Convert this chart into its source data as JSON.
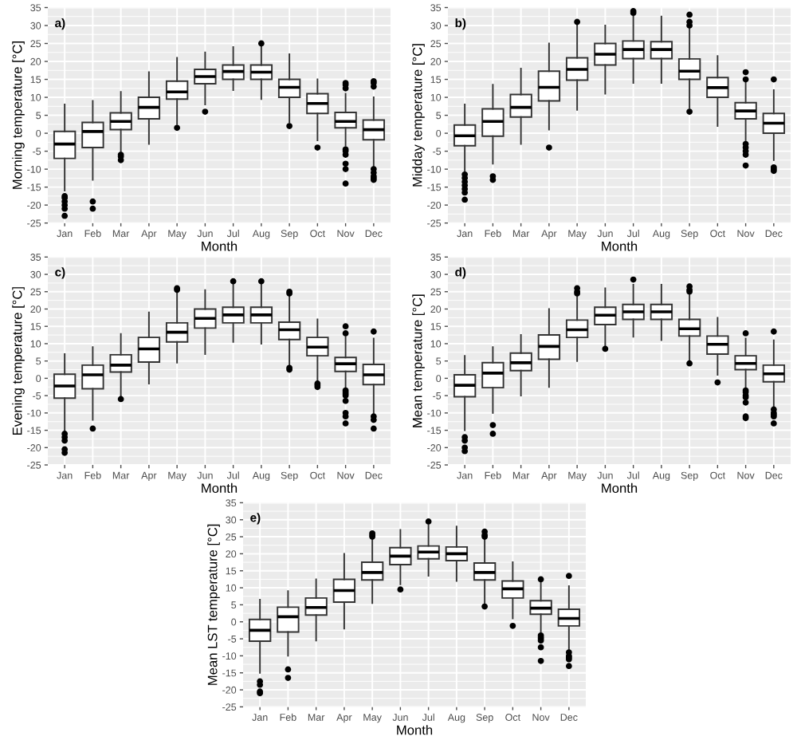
{
  "chart_data": [
    {
      "type": "box",
      "annotations": [
        "a)"
      ],
      "xlabel": "Month",
      "ylabel": "Morning temperature [°C]",
      "categories": [
        "Jan",
        "Feb",
        "Mar",
        "Apr",
        "May",
        "Jun",
        "Jul",
        "Aug",
        "Sep",
        "Oct",
        "Nov",
        "Dec"
      ],
      "ylim": [
        -25,
        35
      ],
      "yticks": [
        -25,
        -20,
        -15,
        -10,
        -5,
        0,
        5,
        10,
        15,
        20,
        25,
        30,
        35
      ],
      "grid": true,
      "color": "#ffffff",
      "boxes": [
        {
          "low": -16,
          "q1": -7,
          "median": -3,
          "q3": 0.5,
          "high": 8,
          "outliers": [
            -17.5,
            -18,
            -19,
            -20,
            -21,
            -23
          ]
        },
        {
          "low": -13,
          "q1": -4,
          "median": 0.5,
          "q3": 3,
          "high": 9,
          "outliers": [
            -19,
            -21
          ]
        },
        {
          "low": -5.5,
          "q1": 1,
          "median": 3.3,
          "q3": 5.7,
          "high": 11.5,
          "outliers": [
            -6,
            -6.5,
            -7.5
          ]
        },
        {
          "low": -3,
          "q1": 4,
          "median": 7.2,
          "q3": 10,
          "high": 17
        },
        {
          "low": 2.5,
          "q1": 9.5,
          "median": 11.5,
          "q3": 14.5,
          "high": 21,
          "outliers": [
            1.5
          ]
        },
        {
          "low": 8,
          "q1": 13.8,
          "median": 15.8,
          "q3": 17.8,
          "high": 22.5,
          "outliers": [
            6
          ]
        },
        {
          "low": 12,
          "q1": 15,
          "median": 17.2,
          "q3": 19,
          "high": 24
        },
        {
          "low": 9.5,
          "q1": 15,
          "median": 17,
          "q3": 19,
          "high": 24,
          "outliers": [
            25
          ]
        },
        {
          "low": 3,
          "q1": 10,
          "median": 12.8,
          "q3": 15,
          "high": 22,
          "outliers": [
            2
          ]
        },
        {
          "low": -2,
          "q1": 5.5,
          "median": 8.3,
          "q3": 11,
          "high": 15,
          "outliers": [
            -4
          ]
        },
        {
          "low": -3.5,
          "q1": 1.5,
          "median": 3.3,
          "q3": 5.8,
          "high": 11,
          "outliers": [
            -4.5,
            -5,
            -6,
            -8.5,
            -10,
            -14,
            12.5,
            13.5,
            14
          ]
        },
        {
          "low": -9.5,
          "q1": -1.8,
          "median": 1,
          "q3": 3.7,
          "high": 10,
          "outliers": [
            -10,
            -11,
            -12,
            -12.5,
            -13,
            13,
            14,
            14.5
          ]
        }
      ]
    },
    {
      "type": "box",
      "annotations": [
        "b)"
      ],
      "xlabel": "Month",
      "ylabel": "Midday temperature [°C]",
      "categories": [
        "Jan",
        "Feb",
        "Mar",
        "Apr",
        "May",
        "Jun",
        "Jul",
        "Aug",
        "Sep",
        "Oct",
        "Nov",
        "Dec"
      ],
      "ylim": [
        -25,
        35
      ],
      "yticks": [
        -25,
        -20,
        -15,
        -10,
        -5,
        0,
        5,
        10,
        15,
        20,
        25,
        30,
        35
      ],
      "grid": true,
      "color": "#ffffff",
      "boxes": [
        {
          "low": -11,
          "q1": -3.5,
          "median": -0.7,
          "q3": 2.3,
          "high": 8,
          "outliers": [
            -11.5,
            -12.5,
            -13.5,
            -14.5,
            -15.5,
            -16.5,
            -18.5
          ]
        },
        {
          "low": -8.5,
          "q1": -0.8,
          "median": 3.3,
          "q3": 6.8,
          "high": 13.5,
          "outliers": [
            -12,
            -13
          ]
        },
        {
          "low": -3,
          "q1": 4.5,
          "median": 7.2,
          "q3": 10.8,
          "high": 18
        },
        {
          "low": 1,
          "q1": 9,
          "median": 12.8,
          "q3": 17.3,
          "high": 25,
          "outliers": [
            -4
          ]
        },
        {
          "low": 6.5,
          "q1": 14.8,
          "median": 17.8,
          "q3": 21,
          "high": 30,
          "outliers": [
            31
          ]
        },
        {
          "low": 11,
          "q1": 19,
          "median": 22,
          "q3": 25,
          "high": 30
        },
        {
          "low": 14,
          "q1": 20.8,
          "median": 23.3,
          "q3": 25.7,
          "high": 32.5,
          "outliers": [
            33.5,
            34
          ]
        },
        {
          "low": 14,
          "q1": 20.8,
          "median": 23.3,
          "q3": 25.5,
          "high": 32.5
        },
        {
          "low": 7,
          "q1": 15,
          "median": 17.3,
          "q3": 20.7,
          "high": 29,
          "outliers": [
            6,
            30,
            31,
            33
          ]
        },
        {
          "low": 2,
          "q1": 10,
          "median": 12.7,
          "q3": 15.5,
          "high": 21.5
        },
        {
          "low": -2.5,
          "q1": 4,
          "median": 6.2,
          "q3": 8.5,
          "high": 14.5,
          "outliers": [
            -3,
            -4,
            -5,
            -6,
            -9,
            15,
            17
          ]
        },
        {
          "low": -7.5,
          "q1": 0,
          "median": 2.8,
          "q3": 5.5,
          "high": 12,
          "outliers": [
            -9.5,
            -10,
            -10.5,
            15
          ]
        }
      ]
    },
    {
      "type": "box",
      "annotations": [
        "c)"
      ],
      "xlabel": "Month",
      "ylabel": "Evening temperature [°C]",
      "categories": [
        "Jan",
        "Feb",
        "Mar",
        "Apr",
        "May",
        "Jun",
        "Jul",
        "Aug",
        "Sep",
        "Oct",
        "Nov",
        "Dec"
      ],
      "ylim": [
        -25,
        35
      ],
      "yticks": [
        -25,
        -20,
        -15,
        -10,
        -5,
        0,
        5,
        10,
        15,
        20,
        25,
        30,
        35
      ],
      "grid": true,
      "color": "#ffffff",
      "boxes": [
        {
          "low": -15,
          "q1": -5.7,
          "median": -2.2,
          "q3": 1.2,
          "high": 7,
          "outliers": [
            -16,
            -17,
            -18,
            -20.5,
            -21.5
          ]
        },
        {
          "low": -12,
          "q1": -3,
          "median": 1,
          "q3": 3.8,
          "high": 9,
          "outliers": [
            -14.5
          ]
        },
        {
          "low": -5,
          "q1": 1.8,
          "median": 3.8,
          "q3": 6.8,
          "high": 12.8,
          "outliers": [
            -6
          ]
        },
        {
          "low": -1.5,
          "q1": 4.7,
          "median": 8.5,
          "q3": 11.8,
          "high": 19
        },
        {
          "low": 4.5,
          "q1": 10.5,
          "median": 13.3,
          "q3": 16,
          "high": 25,
          "outliers": [
            25.5,
            26
          ]
        },
        {
          "low": 7,
          "q1": 14.5,
          "median": 17.3,
          "q3": 20,
          "high": 25.5
        },
        {
          "low": 10.5,
          "q1": 16,
          "median": 18.3,
          "q3": 20.5,
          "high": 27,
          "outliers": [
            28
          ]
        },
        {
          "low": 10,
          "q1": 16,
          "median": 18.3,
          "q3": 20.5,
          "high": 27,
          "outliers": [
            28
          ]
        },
        {
          "low": 4,
          "q1": 11.2,
          "median": 14,
          "q3": 16.2,
          "high": 24,
          "outliers": [
            2.5,
            3,
            24.5,
            25
          ]
        },
        {
          "low": -1,
          "q1": 6.5,
          "median": 9,
          "q3": 11.8,
          "high": 17,
          "outliers": [
            -1.5,
            -2,
            -2.5
          ]
        },
        {
          "low": -3,
          "q1": 2,
          "median": 4.2,
          "q3": 6,
          "high": 12,
          "outliers": [
            -3.5,
            -4,
            -4.5,
            -5,
            -6.5,
            -10,
            -11,
            -13,
            13,
            15
          ]
        },
        {
          "low": -10,
          "q1": -1.8,
          "median": 1,
          "q3": 4,
          "high": 11.5,
          "outliers": [
            -11,
            -12,
            -14.5,
            13.5
          ]
        }
      ]
    },
    {
      "type": "box",
      "annotations": [
        "d)"
      ],
      "xlabel": "Month",
      "ylabel": "Mean temperature [°C]",
      "categories": [
        "Jan",
        "Feb",
        "Mar",
        "Apr",
        "May",
        "Jun",
        "Jul",
        "Aug",
        "Sep",
        "Oct",
        "Nov",
        "Dec"
      ],
      "ylim": [
        -25,
        35
      ],
      "yticks": [
        -25,
        -20,
        -15,
        -10,
        -5,
        0,
        5,
        10,
        15,
        20,
        25,
        30,
        35
      ],
      "grid": true,
      "color": "#ffffff",
      "boxes": [
        {
          "low": -15,
          "q1": -5.3,
          "median": -2,
          "q3": 1,
          "high": 6.5,
          "outliers": [
            -17,
            -18,
            -20,
            -21
          ]
        },
        {
          "low": -10,
          "q1": -2.7,
          "median": 1.5,
          "q3": 4.5,
          "high": 9,
          "outliers": [
            -13.5,
            -16
          ]
        },
        {
          "low": -5,
          "q1": 2.2,
          "median": 4.5,
          "q3": 7.3,
          "high": 12.5
        },
        {
          "low": -2.5,
          "q1": 5.5,
          "median": 9.2,
          "q3": 12.5,
          "high": 20
        },
        {
          "low": 5,
          "q1": 11.8,
          "median": 14,
          "q3": 16.8,
          "high": 24,
          "outliers": [
            24.5,
            25,
            26
          ]
        },
        {
          "low": 9.5,
          "q1": 15.5,
          "median": 18.2,
          "q3": 20.5,
          "high": 26,
          "outliers": [
            8.5
          ]
        },
        {
          "low": 12,
          "q1": 17,
          "median": 19.2,
          "q3": 21.3,
          "high": 27,
          "outliers": [
            28.5
          ]
        },
        {
          "low": 11,
          "q1": 17,
          "median": 19.2,
          "q3": 21.3,
          "high": 27
        },
        {
          "low": 5,
          "q1": 12.2,
          "median": 14.3,
          "q3": 17,
          "high": 24,
          "outliers": [
            4.3,
            25,
            25.5,
            26.5
          ]
        },
        {
          "low": 1,
          "q1": 7,
          "median": 9.8,
          "q3": 12.2,
          "high": 17.5,
          "outliers": [
            -1.2
          ]
        },
        {
          "low": -3,
          "q1": 2.5,
          "median": 4.3,
          "q3": 6.5,
          "high": 11.5,
          "outliers": [
            -3.5,
            -4,
            -5,
            -5.5,
            -7,
            -11,
            -11.5,
            13
          ]
        },
        {
          "low": -8.5,
          "q1": -1,
          "median": 1.3,
          "q3": 3.8,
          "high": 11,
          "outliers": [
            -9,
            -10,
            -10.5,
            -11,
            -13,
            13.5
          ]
        }
      ]
    },
    {
      "type": "box",
      "annotations": [
        "e)"
      ],
      "xlabel": "Month",
      "ylabel": "Mean LST temperature [°C]",
      "categories": [
        "Jan",
        "Feb",
        "Mar",
        "Apr",
        "May",
        "Jun",
        "Jul",
        "Aug",
        "Sep",
        "Oct",
        "Nov",
        "Dec"
      ],
      "ylim": [
        -25,
        35
      ],
      "yticks": [
        -25,
        -20,
        -15,
        -10,
        -5,
        0,
        5,
        10,
        15,
        20,
        25,
        30,
        35
      ],
      "grid": true,
      "color": "#ffffff",
      "boxes": [
        {
          "low": -15,
          "q1": -5.7,
          "median": -2.5,
          "q3": 0.7,
          "high": 6.5,
          "outliers": [
            -17.5,
            -18.5,
            -20.5,
            -21
          ]
        },
        {
          "low": -10,
          "q1": -3,
          "median": 1.5,
          "q3": 4.3,
          "high": 9,
          "outliers": [
            -14,
            -16.5
          ]
        },
        {
          "low": -5.5,
          "q1": 2,
          "median": 4.2,
          "q3": 7,
          "high": 12.5
        },
        {
          "low": -2,
          "q1": 5.8,
          "median": 9.2,
          "q3": 12.5,
          "high": 20
        },
        {
          "low": 5.5,
          "q1": 12.3,
          "median": 14.5,
          "q3": 17.5,
          "high": 24,
          "outliers": [
            25,
            25.5,
            26
          ]
        },
        {
          "low": 11,
          "q1": 16.8,
          "median": 19.3,
          "q3": 21.8,
          "high": 27,
          "outliers": [
            9.5
          ]
        },
        {
          "low": 13.5,
          "q1": 18.5,
          "median": 20.5,
          "q3": 22.3,
          "high": 28.5,
          "outliers": [
            29.5
          ]
        },
        {
          "low": 12,
          "q1": 18,
          "median": 20,
          "q3": 22,
          "high": 28
        },
        {
          "low": 5.5,
          "q1": 12.3,
          "median": 14.5,
          "q3": 17.3,
          "high": 24,
          "outliers": [
            4.5,
            25,
            25.5,
            26.5
          ]
        },
        {
          "low": 1,
          "q1": 7,
          "median": 9.7,
          "q3": 12,
          "high": 17.5,
          "outliers": [
            -1.2
          ]
        },
        {
          "low": -3,
          "q1": 2.2,
          "median": 4,
          "q3": 6.2,
          "high": 11.5,
          "outliers": [
            -4,
            -4.5,
            -5,
            -5.5,
            -7.5,
            -11.5,
            12.5
          ]
        },
        {
          "low": -8.5,
          "q1": -1.2,
          "median": 1,
          "q3": 3.7,
          "high": 10.5,
          "outliers": [
            -9,
            -10,
            -10.5,
            -11,
            -13,
            13.5
          ]
        }
      ]
    }
  ]
}
